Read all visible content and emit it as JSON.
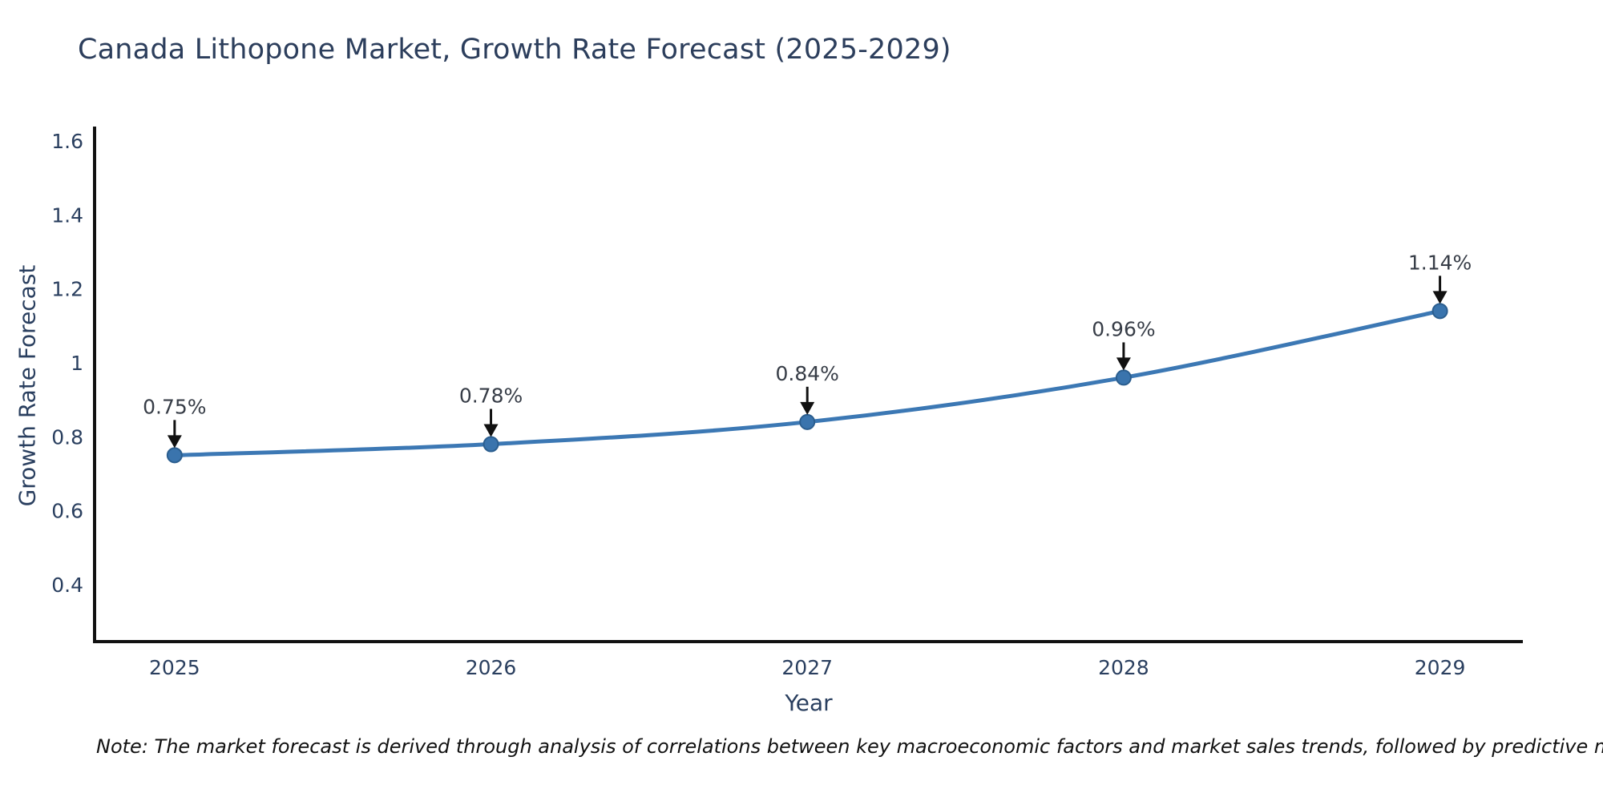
{
  "title": "Canada Lithopone Market, Growth Rate Forecast (2025-2029)",
  "note": "Note: The market forecast is derived through analysis of correlations between key macroeconomic factors and market sales trends, followed by predictive modeling to project future sales",
  "chart_data": {
    "type": "line",
    "title": "Canada Lithopone Market, Growth Rate Forecast (2025-2029)",
    "xlabel": "Year",
    "ylabel": "Growth Rate Forecast",
    "x": [
      2025,
      2026,
      2027,
      2028,
      2029
    ],
    "values": [
      0.75,
      0.78,
      0.84,
      0.96,
      1.14
    ],
    "point_labels": [
      "0.75%",
      "0.78%",
      "0.84%",
      "0.96%",
      "1.14%"
    ],
    "xticks": {
      "values": [
        2025,
        2026,
        2027,
        2028,
        2029
      ],
      "labels": [
        "2025",
        "2026",
        "2027",
        "2028",
        "2029"
      ]
    },
    "yticks": {
      "values": [
        0.4,
        0.6,
        0.8,
        1,
        1.2,
        1.4,
        1.6
      ],
      "labels": [
        "0.4",
        "0.6",
        "0.8",
        "1",
        "1.2",
        "1.4",
        "1.6"
      ]
    },
    "xlim": [
      2024.747,
      2029.262
    ],
    "ylim": [
      0.246,
      1.639
    ],
    "grid": false,
    "legend": false,
    "line_shape": "spline",
    "annotation_arrows": "down-arrow-to-point",
    "colors": {
      "line": "#3c78b4",
      "marker_fill": "#3a74ad",
      "marker_edge": "#2b5e8f",
      "axis": "#111111",
      "tick_text": "#2a3f5f",
      "axis_title_text": "#2a3f5f",
      "title_text": "#2c3e5c",
      "annotation_text": "#373d47",
      "arrow": "#111111",
      "note_text": "#111111",
      "background": "#ffffff"
    }
  }
}
